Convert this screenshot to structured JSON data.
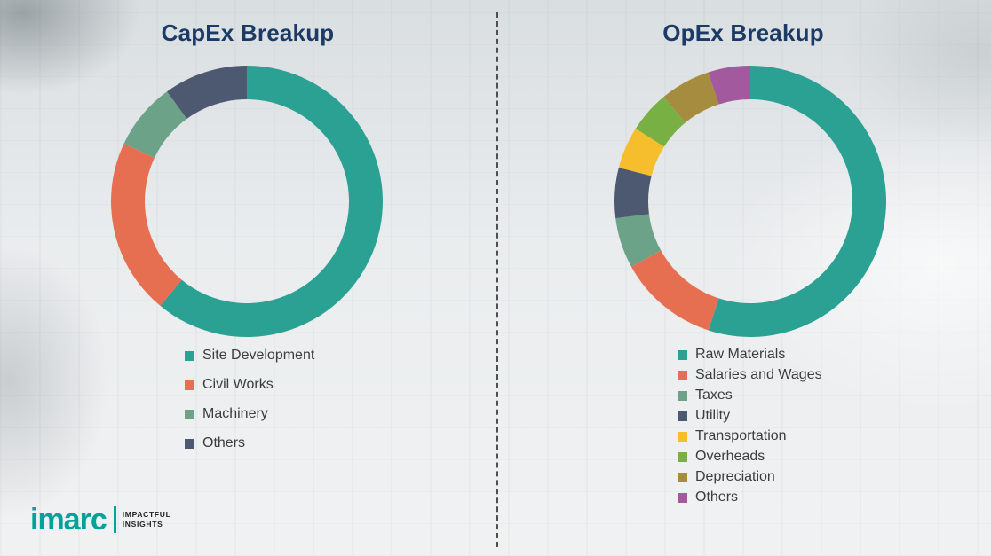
{
  "chart_data": [
    {
      "type": "pie",
      "donut": true,
      "title": "CapEx Breakup",
      "labels": [
        "Site Development",
        "Civil Works",
        "Machinery",
        "Others"
      ],
      "values": [
        61,
        21,
        8,
        10
      ],
      "colors": [
        "#2AA193",
        "#E76F51",
        "#6CA287",
        "#4D5970"
      ],
      "values_are_estimated_percent": true,
      "legend_position": "bottom",
      "data_labels_shown": false
    },
    {
      "type": "pie",
      "donut": true,
      "title": "OpEx Breakup",
      "labels": [
        "Raw Materials",
        "Salaries and Wages",
        "Taxes",
        "Utility",
        "Transportation",
        "Overheads",
        "Depreciation",
        "Others"
      ],
      "values": [
        55,
        12,
        6,
        6,
        5,
        5,
        6,
        5
      ],
      "colors": [
        "#2AA193",
        "#E76F51",
        "#6CA287",
        "#4D5970",
        "#F6BE2C",
        "#79B043",
        "#A68C3F",
        "#A3599E"
      ],
      "values_are_estimated_percent": true,
      "legend_position": "bottom",
      "data_labels_shown": false
    }
  ],
  "divider": {
    "style": "vertical-dashed",
    "color": "#4F4F4F"
  },
  "logo": {
    "brand": "imarc",
    "brand_color": "#00A29A",
    "tagline": [
      "IMPACTFUL",
      "INSIGHTS"
    ]
  }
}
